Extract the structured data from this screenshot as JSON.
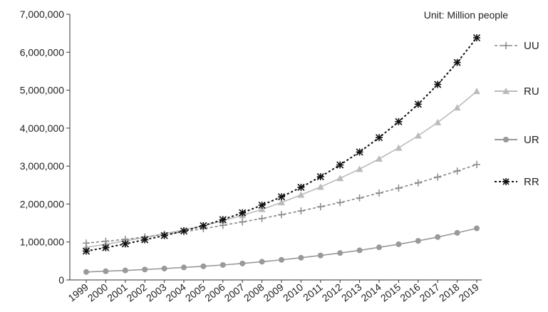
{
  "chart_data": {
    "type": "line",
    "unit_note": "Unit: Million people",
    "x": [
      "1999",
      "2000",
      "2001",
      "2002",
      "2003",
      "2004",
      "2005",
      "2006",
      "2007",
      "2008",
      "2009",
      "2010",
      "2011",
      "2012",
      "2013",
      "2014",
      "2015",
      "2016",
      "2017",
      "2018",
      "2019"
    ],
    "ylim": [
      0,
      7000000
    ],
    "yticks": [
      0,
      1000000,
      2000000,
      3000000,
      4000000,
      5000000,
      6000000,
      7000000
    ],
    "ytick_labels": [
      "0",
      "1,000,000",
      "2,000,000",
      "3,000,000",
      "4,000,000",
      "5,000,000",
      "6,000,000",
      "7,000,000"
    ],
    "grid": false,
    "legend_position": "right",
    "series": [
      {
        "name": "UU",
        "color": "#888888",
        "dash": "4,3",
        "marker": "plus",
        "values": [
          970000,
          1020000,
          1070000,
          1130000,
          1200000,
          1270000,
          1350000,
          1440000,
          1530000,
          1620000,
          1720000,
          1820000,
          1930000,
          2040000,
          2160000,
          2290000,
          2420000,
          2560000,
          2710000,
          2870000,
          3040000
        ]
      },
      {
        "name": "RU",
        "color": "#bbbbbb",
        "dash": "",
        "marker": "triangle",
        "values": [
          860000,
          940000,
          1030000,
          1120000,
          1220000,
          1320000,
          1430000,
          1560000,
          1700000,
          1860000,
          2040000,
          2240000,
          2450000,
          2680000,
          2920000,
          3190000,
          3480000,
          3800000,
          4150000,
          4540000,
          4970000
        ]
      },
      {
        "name": "UR",
        "color": "#999999",
        "dash": "",
        "marker": "circle",
        "values": [
          210000,
          230000,
          250000,
          275000,
          300000,
          330000,
          360000,
          395000,
          435000,
          480000,
          530000,
          585000,
          645000,
          710000,
          780000,
          860000,
          940000,
          1030000,
          1130000,
          1240000,
          1360000
        ]
      },
      {
        "name": "RR",
        "color": "#111111",
        "dash": "3,3",
        "marker": "asterisk",
        "values": [
          760000,
          850000,
          950000,
          1060000,
          1170000,
          1290000,
          1430000,
          1590000,
          1770000,
          1970000,
          2190000,
          2440000,
          2720000,
          3030000,
          3370000,
          3750000,
          4170000,
          4630000,
          5150000,
          5730000,
          6380000
        ]
      }
    ]
  }
}
